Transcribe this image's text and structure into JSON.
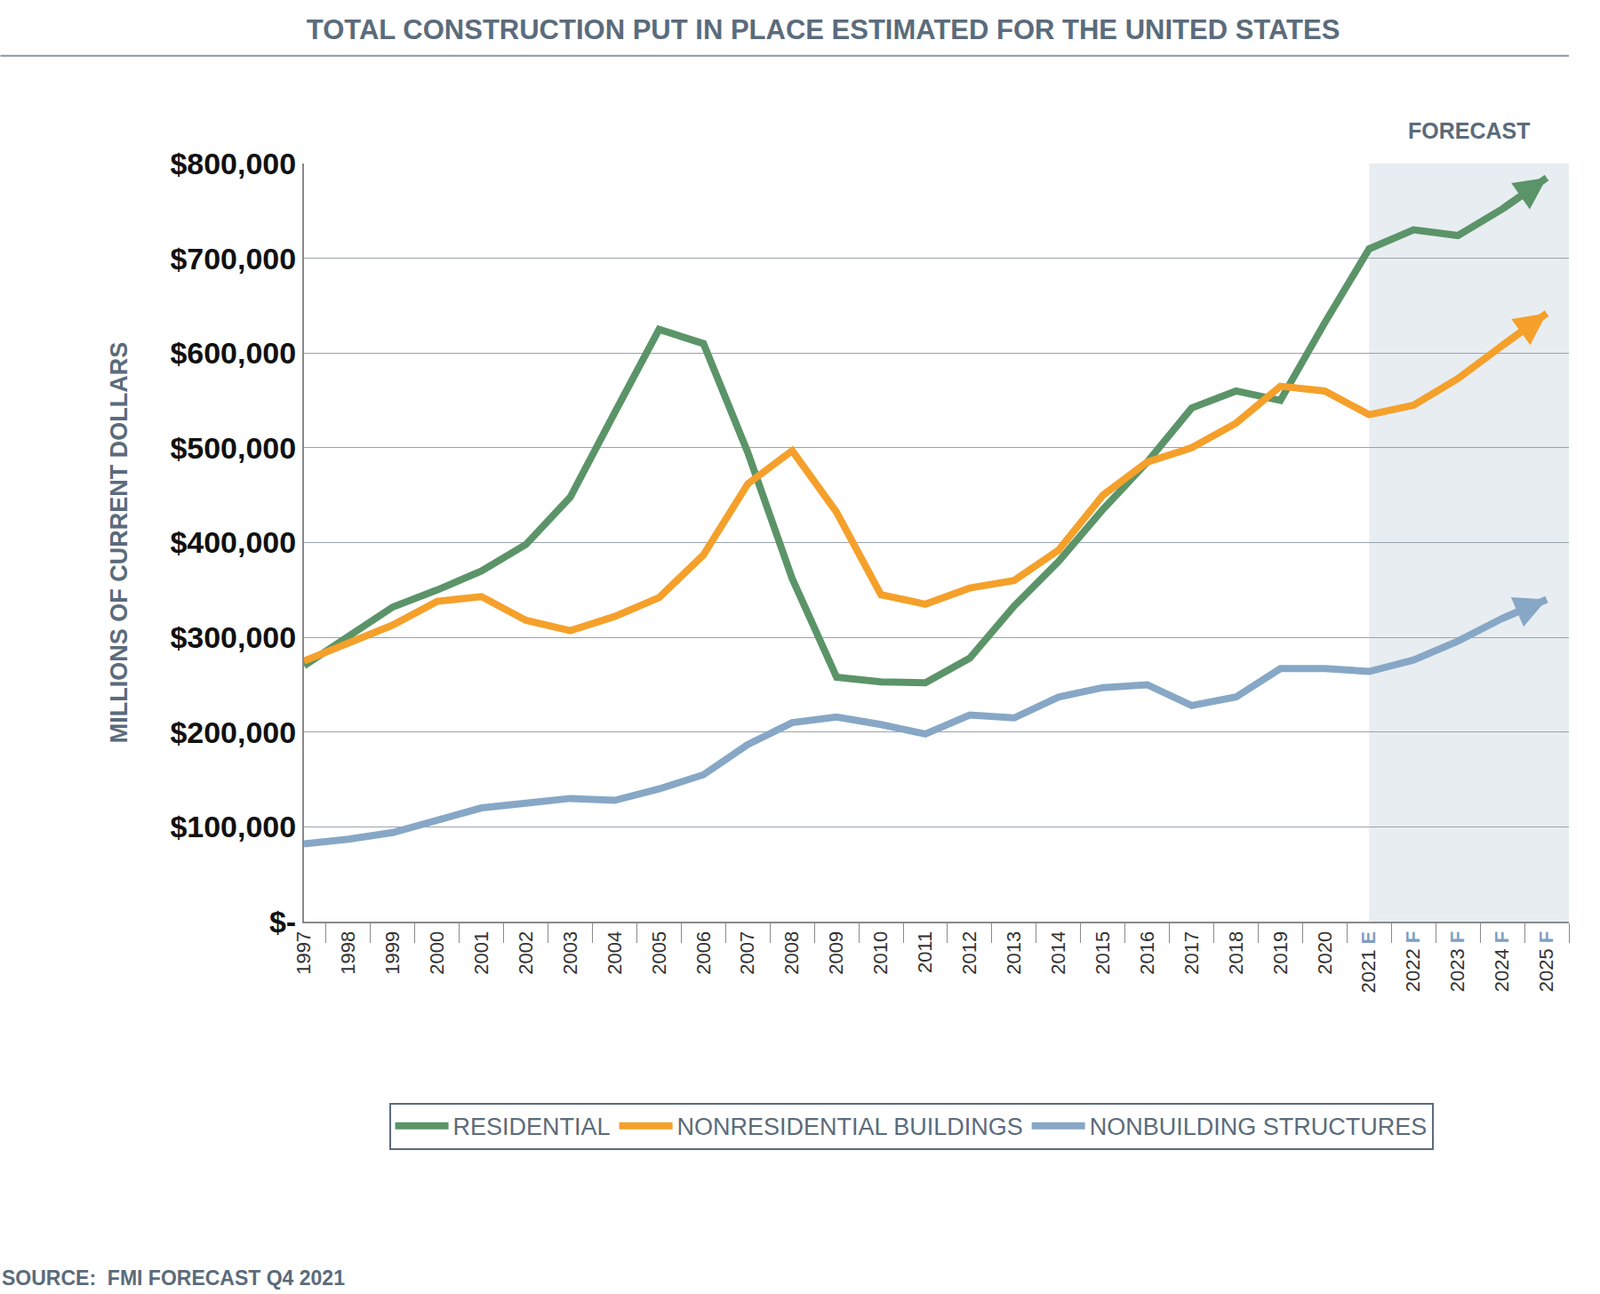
{
  "chart_data": {
    "type": "line",
    "title": "TOTAL CONSTRUCTION PUT IN PLACE ESTIMATED FOR THE UNITED STATES",
    "y_label": "MILLIONS OF CURRENT DOLLARS",
    "source": "SOURCE:  FMI FORECAST Q4 2021",
    "annotations": [
      {
        "text": "FORECAST",
        "x0": "2021 E",
        "x1": "2025 F"
      }
    ],
    "categories": [
      "1997",
      "1998",
      "1999",
      "2000",
      "2001",
      "2002",
      "2003",
      "2004",
      "2005",
      "2006",
      "2007",
      "2008",
      "2009",
      "2010",
      "2011",
      "2012",
      "2013",
      "2014",
      "2015",
      "2016",
      "2017",
      "2018",
      "2019",
      "2020",
      "2021 E",
      "2022 F",
      "2023 F",
      "2024 F",
      "2025 F"
    ],
    "series": [
      {
        "name": "RESIDENTIAL",
        "color": "#5b9468",
        "values": [
          270000,
          300000,
          332000,
          350000,
          370000,
          398000,
          448000,
          537000,
          625000,
          610000,
          495000,
          362000,
          258000,
          253000,
          252000,
          278000,
          333000,
          380000,
          435000,
          485000,
          542000,
          560000,
          550000,
          632000,
          710000,
          730000,
          724000,
          752000,
          785000
        ]
      },
      {
        "name": "NONRESIDENTIAL BUILDINGS",
        "color": "#f5a02a",
        "values": [
          275000,
          295000,
          313000,
          338000,
          343000,
          318000,
          307000,
          322000,
          342000,
          387000,
          462000,
          497000,
          432000,
          345000,
          335000,
          352000,
          360000,
          392000,
          450000,
          485000,
          500000,
          526000,
          565000,
          560000,
          535000,
          545000,
          573000,
          608000,
          642000
        ]
      },
      {
        "name": "NONBUILDING STRUCTURES",
        "color": "#87a7c6",
        "values": [
          82000,
          87000,
          94000,
          107000,
          120000,
          125000,
          130000,
          128000,
          140000,
          155000,
          187000,
          210000,
          216000,
          208000,
          198000,
          218000,
          215000,
          237000,
          247000,
          250000,
          228000,
          237000,
          267000,
          267000,
          264000,
          276000,
          296000,
          320000,
          340000
        ]
      }
    ],
    "ylim": [
      0,
      800000
    ],
    "yticks": [
      {
        "value": 0,
        "label": "$-"
      },
      {
        "value": 100000,
        "label": "$100,000"
      },
      {
        "value": 200000,
        "label": "$200,000"
      },
      {
        "value": 300000,
        "label": "$300,000"
      },
      {
        "value": 400000,
        "label": "$400,000"
      },
      {
        "value": 500000,
        "label": "$500,000"
      },
      {
        "value": 600000,
        "label": "$600,000"
      },
      {
        "value": 700000,
        "label": "$700,000"
      },
      {
        "value": 800000,
        "label": "$800,000"
      }
    ],
    "grid": true,
    "legend": "bottom",
    "marker": "end_arrow"
  }
}
